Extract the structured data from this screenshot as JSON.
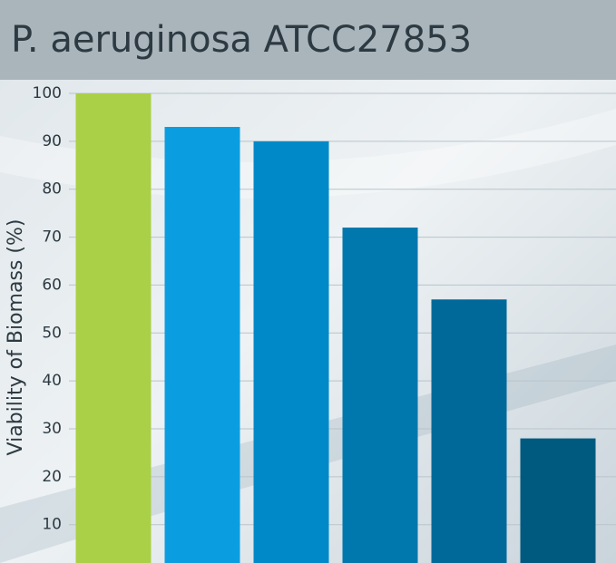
{
  "chart_data": {
    "type": "bar",
    "title": "P. aeruginosa ATCC27853",
    "y_label": "Viability of Biomass (%)",
    "categories": [
      null,
      null,
      null,
      null,
      null,
      null
    ],
    "values": [
      100,
      93,
      90,
      72,
      57,
      28
    ],
    "colors": [
      "#a9d046",
      "#0a9ee0",
      "#0089c8",
      "#0078ad",
      "#00699a",
      "#005a80"
    ],
    "ylim": [
      2,
      100
    ],
    "yticks": [
      10,
      20,
      30,
      40,
      50,
      60,
      70,
      80,
      90,
      100
    ],
    "grid": true
  }
}
